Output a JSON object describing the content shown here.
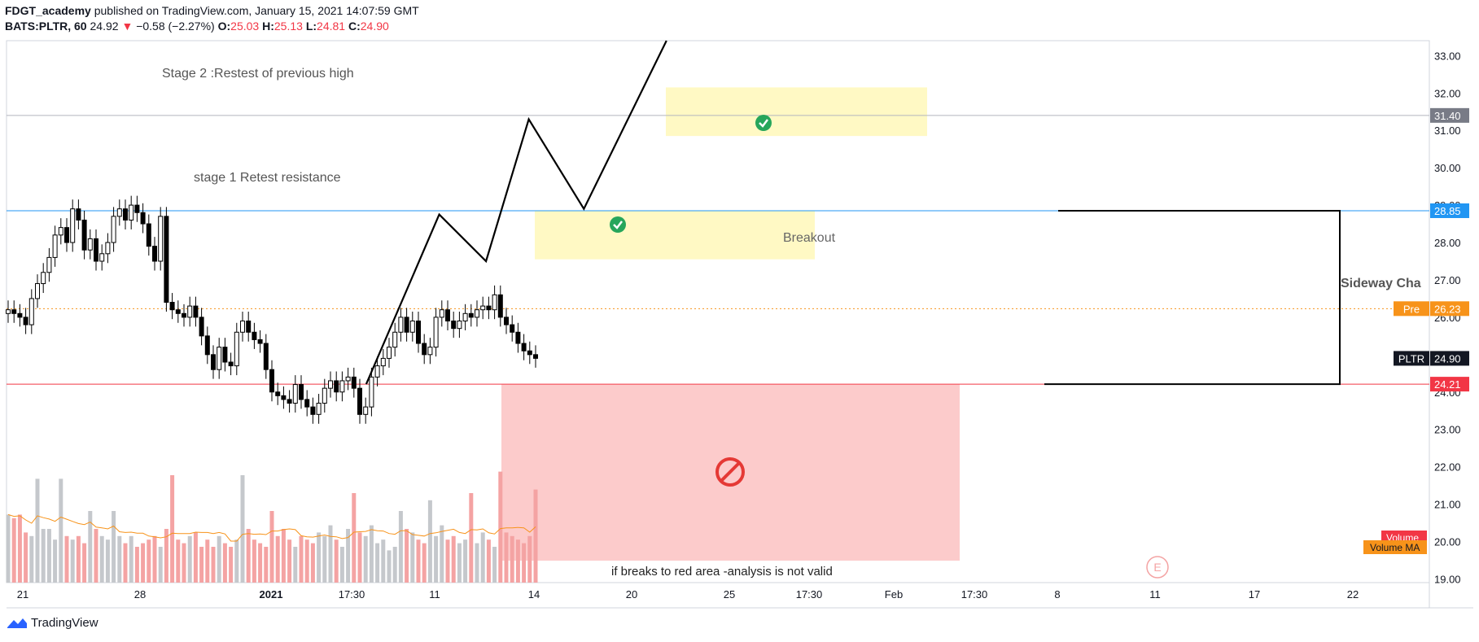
{
  "header": {
    "author": "FDGT_academy",
    "published": "published on TradingView.com, January 15, 2021 14:07:59 GMT",
    "symbol": "BATS:PLTR, 60",
    "last": "24.92",
    "change": "−0.58 (−2.27%)",
    "o_label": "O:",
    "o": "25.03",
    "h_label": "H:",
    "h": "25.13",
    "l_label": "L:",
    "l": "24.81",
    "c_label": "C:",
    "c": "24.90"
  },
  "footer": {
    "brand": "TradingView"
  },
  "colors": {
    "up": "#ffffff",
    "down": "#000000",
    "candle_border": "#000000",
    "resistance": "#2196f3",
    "support": "#f23645",
    "prev_close": "#f7931a",
    "yellow_zone": "#fff9c4",
    "red_zone": "#fccbcb",
    "check": "#26a65b",
    "no_entry": "#e53935",
    "vol_up": "#c5c8cc",
    "vol_down": "#f4a3a3",
    "vol_ma": "#f7931a"
  },
  "chart_data": {
    "type": "candlestick",
    "symbol": "BATS:PLTR",
    "interval": "60",
    "ylim": [
      18.9,
      33.4
    ],
    "y_ticks": [
      "33.00",
      "32.00",
      "31.00",
      "30.00",
      "29.00",
      "28.00",
      "27.00",
      "26.00",
      "25.00",
      "24.00",
      "23.00",
      "22.00",
      "21.00",
      "20.00",
      "19.00"
    ],
    "x_ticks": [
      "21",
      "28",
      "2021",
      "17:30",
      "11",
      "14",
      "20",
      "25",
      "17:30",
      "Feb",
      "17:30",
      "8",
      "11",
      "17",
      "22"
    ],
    "price_labels": [
      {
        "text": "31.40",
        "value": 31.4,
        "color": "#787b86"
      },
      {
        "text": "28.85",
        "value": 28.85,
        "color": "#2196f3"
      },
      {
        "text": "26.23",
        "value": 26.23,
        "color": "#f7931a",
        "prefix": "Pre"
      },
      {
        "text": "24.90",
        "value": 24.9,
        "color": "#131722",
        "prefix": "PLTR"
      },
      {
        "text": "24.21",
        "value": 24.21,
        "color": "#f23645"
      }
    ],
    "volume_labels": [
      "Volume",
      "Volume MA"
    ],
    "horizontal_lines": [
      {
        "value": 31.4,
        "color": "#b2b5be"
      },
      {
        "value": 28.85,
        "color": "#2196f3"
      },
      {
        "value": 26.23,
        "color": "#f7931a",
        "dotted": true
      },
      {
        "value": 24.21,
        "color": "#f23645"
      }
    ],
    "annotations": [
      "Stage 2 :Restest of previous high",
      "stage 1 Retest resistance",
      "Breakout",
      "Sideway Cha",
      "if breaks to red area -analysis is not valid"
    ],
    "event_marker": "E",
    "projected_path": [
      [
        26.0,
        24.21
      ],
      [
        31.3,
        28.75
      ],
      [
        34.7,
        27.5
      ],
      [
        37.8,
        31.3
      ],
      [
        41.8,
        28.9
      ],
      [
        47.8,
        33.4
      ]
    ],
    "candles_close_approx": [
      26.2,
      26.1,
      26.0,
      25.8,
      26.5,
      26.9,
      27.2,
      27.6,
      28.2,
      28.4,
      28.0,
      28.9,
      28.6,
      27.8,
      28.1,
      27.5,
      27.7,
      28.0,
      28.7,
      28.9,
      28.6,
      29.0,
      28.8,
      28.5,
      27.9,
      27.5,
      28.7,
      26.4,
      26.2,
      26.1,
      26.0,
      26.3,
      26.0,
      25.5,
      25.0,
      24.6,
      25.2,
      24.8,
      24.7,
      25.6,
      25.9,
      25.6,
      25.4,
      25.3,
      24.6,
      24.0,
      23.9,
      23.8,
      23.7,
      24.2,
      23.8,
      23.6,
      23.4,
      23.7,
      24.1,
      24.3,
      24.0,
      24.3,
      24.4,
      24.1,
      23.4,
      23.6,
      24.4,
      24.7,
      24.9,
      25.2,
      25.6,
      26.0,
      25.6,
      25.9,
      25.3,
      25.0,
      25.2,
      26.0,
      26.2,
      25.9,
      25.7,
      25.9,
      26.1,
      26.0,
      26.2,
      26.3,
      26.2,
      26.6,
      26.0,
      25.8,
      25.6,
      25.3,
      25.1,
      25.0,
      24.9
    ],
    "volume_approx": [
      1.9,
      1.8,
      1.9,
      1.4,
      1.3,
      2.9,
      1.5,
      1.5,
      1.2,
      2.9,
      1.3,
      1.2,
      1.3,
      1.1,
      2.0,
      1.5,
      1.3,
      1.2,
      2.0,
      1.3,
      1.1,
      1.3,
      1.0,
      1.1,
      1.2,
      1.3,
      1.0,
      1.5,
      3.0,
      1.2,
      1.1,
      1.3,
      1.4,
      1.0,
      1.2,
      1.0,
      1.3,
      1.1,
      1.0,
      1.2,
      3.0,
      1.5,
      1.2,
      1.1,
      1.0,
      2.0,
      1.3,
      1.5,
      1.2,
      1.0,
      1.3,
      1.2,
      1.1,
      1.4,
      1.3,
      1.6,
      1.2,
      1.0,
      1.5,
      2.5,
      1.4,
      1.3,
      1.6,
      1.1,
      1.2,
      0.9,
      1.0,
      2.0,
      1.5,
      1.4,
      1.2,
      1.1,
      2.3,
      1.3,
      1.6,
      1.2,
      1.3,
      1.1,
      1.2,
      2.5,
      1.1,
      1.4,
      1.2,
      1.0,
      3.1,
      1.4,
      1.3,
      1.2,
      1.1,
      1.3,
      2.6
    ]
  }
}
